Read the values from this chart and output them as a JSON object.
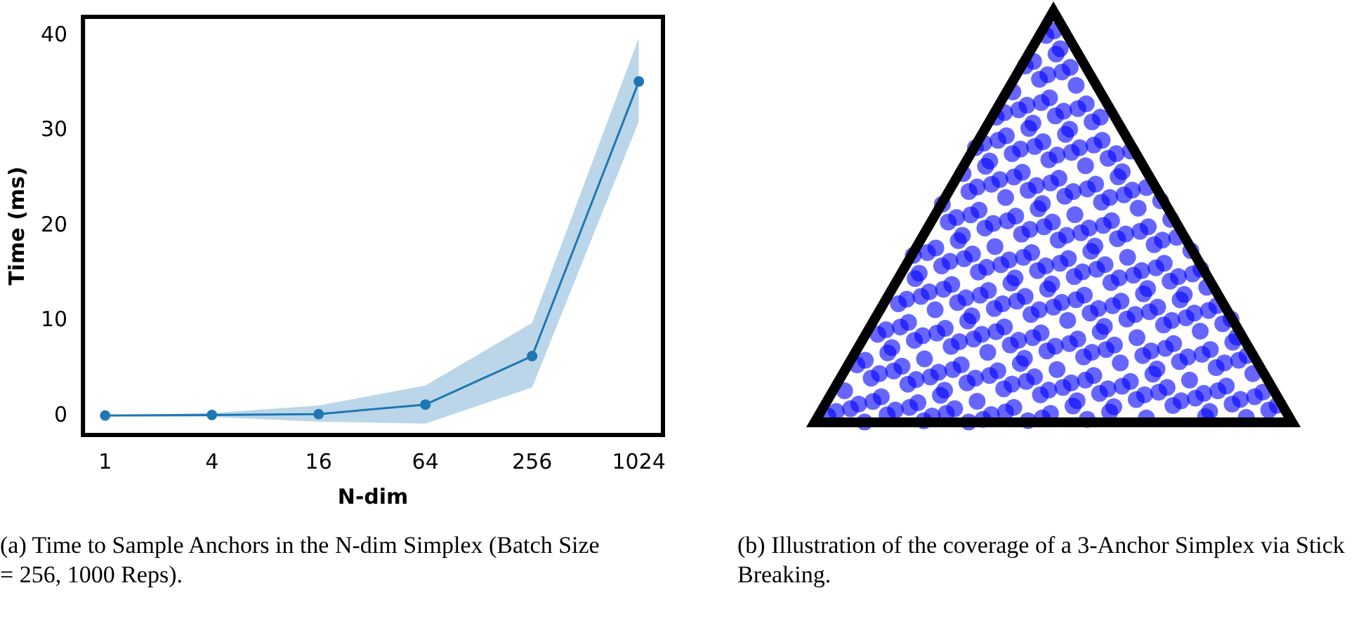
{
  "chart_data": [
    {
      "type": "line",
      "title": "(a) Time to Sample Anchors in the N-dim Simplex (Batch Size = 256, 1000 Reps).",
      "xlabel": "N-dim",
      "ylabel": "Time (ms)",
      "log": "x",
      "x": [
        1,
        4,
        16,
        64,
        256,
        1024
      ],
      "xlim": [
        0.75,
        1400
      ],
      "xticks": [
        1,
        4,
        16,
        64,
        256,
        1024
      ],
      "ylim": [
        -2,
        42
      ],
      "yticks": [
        0,
        10,
        20,
        30,
        40
      ],
      "grid": false,
      "legend": false,
      "marker": "circle",
      "series": [
        {
          "color": "#1f77b4",
          "values": [
            0.05,
            0.1,
            0.2,
            1.2,
            6.3,
            35.2
          ],
          "lower": [
            0,
            -0.1,
            -0.6,
            -0.8,
            3,
            31
          ],
          "upper": [
            0.1,
            0.3,
            1.1,
            3.2,
            9.8,
            39.8
          ]
        }
      ]
    },
    {
      "type": "other",
      "title": "(b) Illustration of the coverage of a 3-Anchor Simplex via Stick Breaking."
    }
  ]
}
